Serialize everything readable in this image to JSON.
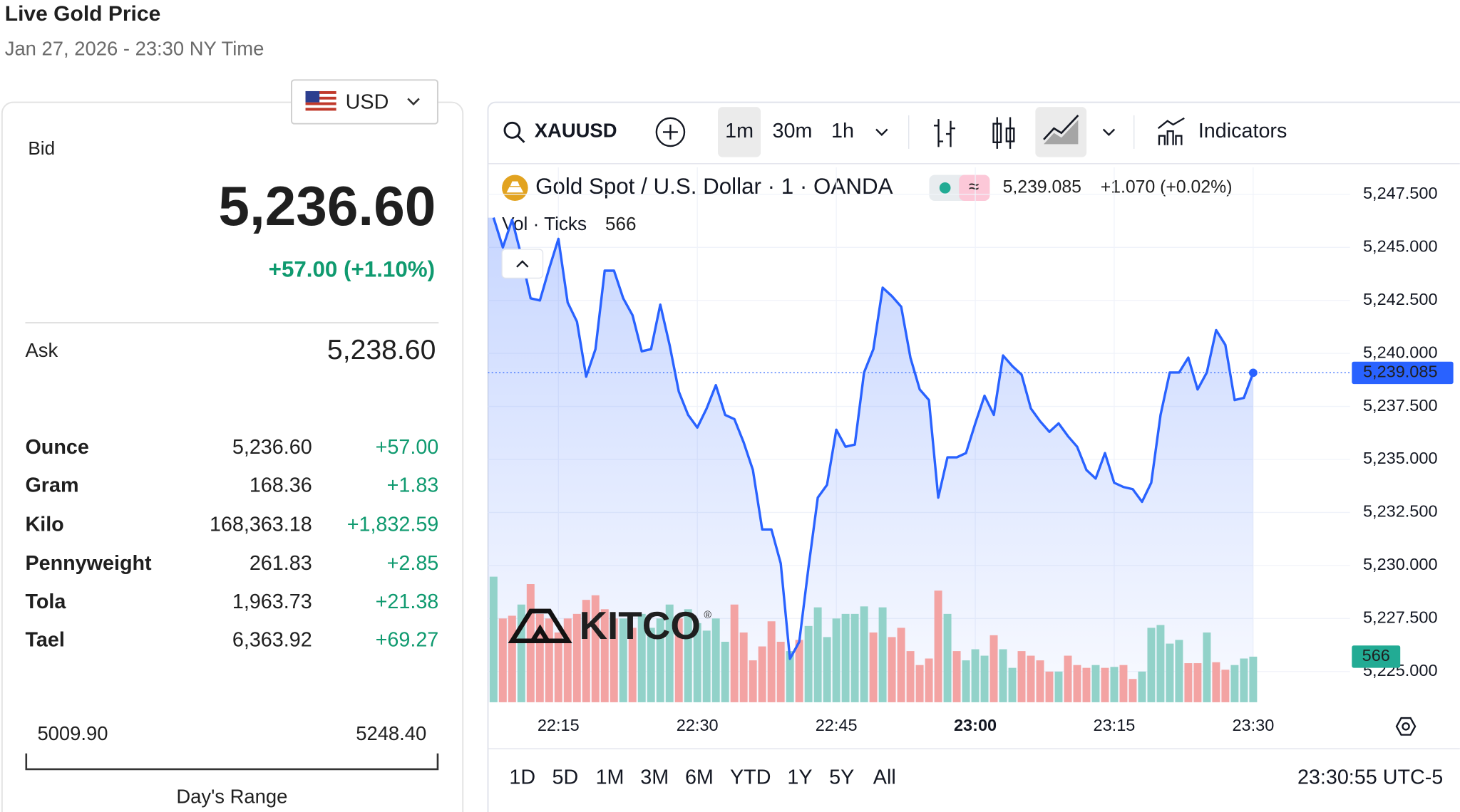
{
  "header": {
    "title": "Live Gold Price",
    "subtitle": "Jan 27, 2026 - 23:30 NY Time"
  },
  "currency": "USD",
  "bid": {
    "label": "Bid",
    "price": "5,236.60",
    "change": "+57.00 (+1.10%)"
  },
  "ask": {
    "label": "Ask",
    "price": "5,238.60"
  },
  "table": {
    "rows": [
      {
        "name": "Ounce",
        "price": "5,236.60",
        "change": "+57.00"
      },
      {
        "name": "Gram",
        "price": "168.36",
        "change": "+1.83"
      },
      {
        "name": "Kilo",
        "price": "168,363.18",
        "change": "+1,832.59"
      },
      {
        "name": "Pennyweight",
        "price": "261.83",
        "change": "+2.85"
      },
      {
        "name": "Tola",
        "price": "1,963.73",
        "change": "+21.38"
      },
      {
        "name": "Tael",
        "price": "6,363.92",
        "change": "+69.27"
      }
    ]
  },
  "range": {
    "low": "5009.90",
    "high": "5248.40",
    "label": "Day's Range"
  },
  "toolbar": {
    "symbol": "XAUUSD",
    "intervals": [
      "1m",
      "30m",
      "1h"
    ],
    "indicators": "Indicators"
  },
  "footer": {
    "ranges": [
      "1D",
      "5D",
      "1M",
      "3M",
      "6M",
      "YTD",
      "1Y",
      "5Y",
      "All"
    ],
    "clock": "23:30:55 UTC-5"
  },
  "logo": {
    "text": "KITCO",
    "mark": "®"
  },
  "chart_data": {
    "type": "area",
    "title": "Gold Spot / U.S. Dollar · 1 · OANDA",
    "change_text": "+1.070 (+0.02%)",
    "last_price": {
      "value": 5239.085,
      "label": "5,239.085"
    },
    "categories": [
      null,
      null,
      null,
      null,
      null,
      null,
      null,
      "22:15",
      null,
      null,
      null,
      null,
      null,
      null,
      null,
      null,
      null,
      null,
      null,
      null,
      null,
      null,
      "22:30",
      null,
      null,
      null,
      null,
      null,
      null,
      null,
      null,
      null,
      null,
      null,
      null,
      null,
      null,
      "22:45",
      null,
      null,
      null,
      null,
      null,
      null,
      null,
      null,
      null,
      null,
      null,
      null,
      null,
      null,
      "23:00",
      null,
      null,
      null,
      null,
      null,
      null,
      null,
      null,
      null,
      null,
      null,
      null,
      null,
      null,
      "23:15",
      null,
      null,
      null,
      null,
      null,
      null,
      null,
      null,
      null,
      null,
      null,
      null,
      null,
      null,
      "23:30"
    ],
    "series": [
      {
        "name": "XAUUSD",
        "color": "#2962ff",
        "values": [
          5246.4,
          5245.0,
          5246.3,
          5244.6,
          5242.6,
          5242.5,
          5244.0,
          5245.4,
          5242.4,
          5241.5,
          5238.9,
          5240.2,
          5243.9,
          5243.9,
          5242.6,
          5241.8,
          5240.1,
          5240.2,
          5242.3,
          5240.4,
          5238.2,
          5237.1,
          5236.5,
          5237.4,
          5238.5,
          5237.1,
          5236.9,
          5235.8,
          5234.5,
          5231.7,
          5231.7,
          5230.1,
          5225.6,
          5226.4,
          5229.9,
          5233.2,
          5233.8,
          5236.4,
          5235.6,
          5235.7,
          5239.1,
          5240.2,
          5243.1,
          5242.7,
          5242.2,
          5239.8,
          5238.3,
          5237.8,
          5233.2,
          5235.1,
          5235.1,
          5235.3,
          5236.7,
          5238.0,
          5237.1,
          5239.9,
          5239.4,
          5239.0,
          5237.4,
          5236.8,
          5236.3,
          5236.7,
          5236.1,
          5235.6,
          5234.5,
          5234.1,
          5235.3,
          5233.9,
          5233.7,
          5233.6,
          5233.0,
          5233.9,
          5237.1,
          5239.1,
          5239.1,
          5239.8,
          5238.3,
          5239.1,
          5241.1,
          5240.4,
          5237.8,
          5237.9,
          5239.085
        ]
      }
    ],
    "volume": {
      "name": "Vol · Ticks",
      "up_color": "#92d2c9",
      "down_color": "#f3a3a3",
      "values": [
        1559,
        1040,
        1074,
        1213,
        1467,
        1097,
        1040,
        866,
        1040,
        1097,
        1271,
        1328,
        1155,
        1040,
        1040,
        924,
        1097,
        924,
        1040,
        1213,
        1040,
        1155,
        982,
        889,
        1040,
        751,
        1213,
        866,
        520,
        693,
        1005,
        751,
        635,
        774,
        947,
        1178,
        809,
        1040,
        1097,
        1097,
        1190,
        866,
        1178,
        809,
        924,
        635,
        462,
        543,
        1386,
        1097,
        635,
        520,
        658,
        578,
        832,
        658,
        427,
        635,
        578,
        520,
        381,
        381,
        578,
        462,
        427,
        462,
        427,
        439,
        462,
        289,
        381,
        924,
        959,
        728,
        774,
        485,
        485,
        866,
        497,
        404,
        462,
        543,
        566
      ],
      "up": [
        true,
        false,
        false,
        true,
        false,
        false,
        false,
        false,
        false,
        false,
        false,
        false,
        false,
        false,
        true,
        false,
        true,
        true,
        true,
        true,
        false,
        true,
        true,
        true,
        true,
        true,
        false,
        false,
        false,
        false,
        false,
        false,
        true,
        false,
        true,
        true,
        true,
        true,
        true,
        true,
        true,
        false,
        true,
        false,
        false,
        false,
        false,
        false,
        false,
        true,
        false,
        true,
        true,
        true,
        false,
        true,
        true,
        false,
        false,
        false,
        false,
        true,
        false,
        false,
        false,
        true,
        false,
        true,
        false,
        false,
        true,
        true,
        true,
        true,
        true,
        false,
        false,
        true,
        false,
        false,
        true,
        true,
        true
      ],
      "vlim": [
        0,
        6640
      ]
    },
    "ylim": [
      5223.55,
      5248.77
    ],
    "yticks": [
      {
        "value": 5225,
        "label": "5,225.000"
      },
      {
        "value": 5227.5,
        "label": "5,227.500"
      },
      {
        "value": 5230,
        "label": "5,230.000"
      },
      {
        "value": 5232.5,
        "label": "5,232.500"
      },
      {
        "value": 5235,
        "label": "5,235.000"
      },
      {
        "value": 5237.5,
        "label": "5,237.500"
      },
      {
        "value": 5240,
        "label": "5,240.000"
      },
      {
        "value": 5242.5,
        "label": "5,242.500"
      },
      {
        "value": 5245,
        "label": "5,245.000"
      },
      {
        "value": 5247.5,
        "label": "5,247.500"
      }
    ],
    "grid": true
  }
}
